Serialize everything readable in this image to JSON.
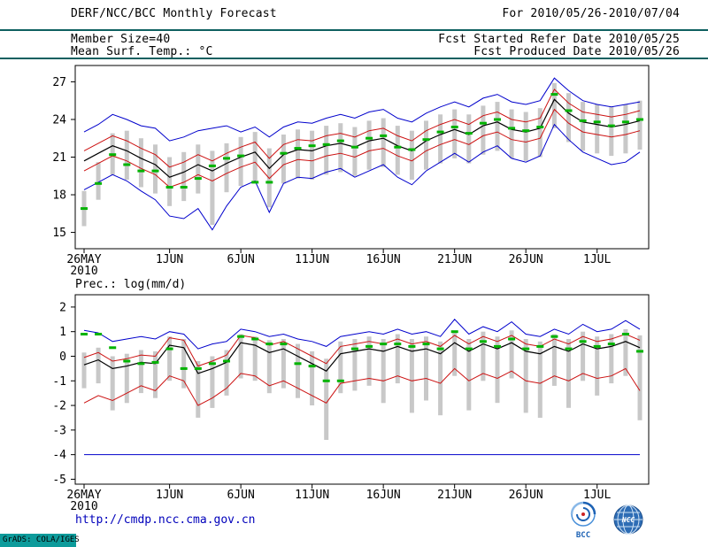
{
  "header": {
    "title": "DERF/NCC/BCC Monthly Forecast",
    "member_size": "Member Size=40",
    "variable_label": "Mean Surf. Temp.: °C",
    "for_range": "For 2010/05/26-2010/07/04",
    "fcst_start": "Fcst Started Refer Date 2010/05/25",
    "fcst_produced": "Fcst Produced Date 2010/05/26"
  },
  "footer": {
    "url": "http://cmdp.ncc.cma.gov.cn",
    "grads_credit": "GrADS: COLA/IGES",
    "bcc_logo_label": "BCC",
    "ncc_logo_label": "NCC"
  },
  "colors": {
    "header_rule": "#0e6060",
    "url_link": "#0000bb",
    "grads_bg": "#0d9b9b",
    "ensemble_minmax": "#0000cc",
    "sigma_band": "#cc1111",
    "ensemble_mean": "#000000",
    "observation": "#00b300",
    "spread_bar": "#c8c8c8"
  },
  "chart_data": [
    {
      "type": "line",
      "title": "Mean Surf. Temp.: °C",
      "ylabel": "°C",
      "ylim": [
        13.7,
        28.3
      ],
      "yticks": [
        15,
        18,
        21,
        24,
        27
      ],
      "n_days": 40,
      "x_tick_positions": [
        0,
        6,
        11,
        16,
        21,
        26,
        31,
        36
      ],
      "x_tick_labels": [
        "26MAY",
        "1JUN",
        "6JUN",
        "11JUN",
        "16JUN",
        "21JUN",
        "26JUN",
        "1JUL"
      ],
      "x_sub_label": "2010",
      "series": [
        {
          "name": "ensemble-max",
          "color": "#0000cc",
          "width": 1,
          "values": [
            23.0,
            23.6,
            24.4,
            24.0,
            23.5,
            23.3,
            22.3,
            22.6,
            23.1,
            23.3,
            23.5,
            23.0,
            23.4,
            22.6,
            23.4,
            23.8,
            23.7,
            24.1,
            24.4,
            24.1,
            24.6,
            24.8,
            24.1,
            23.8,
            24.5,
            25.0,
            25.4,
            25.0,
            25.7,
            26.0,
            25.4,
            25.2,
            25.5,
            27.3,
            26.3,
            25.5,
            25.2,
            25.0,
            25.2,
            25.4
          ]
        },
        {
          "name": "ensemble-min",
          "color": "#0000cc",
          "width": 1,
          "values": [
            18.4,
            19.0,
            19.6,
            19.1,
            18.3,
            17.6,
            16.3,
            16.1,
            16.9,
            15.2,
            17.1,
            18.6,
            19.1,
            16.6,
            18.9,
            19.4,
            19.3,
            19.8,
            20.1,
            19.4,
            19.9,
            20.4,
            19.4,
            18.8,
            19.9,
            20.6,
            21.3,
            20.6,
            21.4,
            21.9,
            20.9,
            20.6,
            21.1,
            23.6,
            22.4,
            21.4,
            20.9,
            20.4,
            20.6,
            21.4
          ]
        },
        {
          "name": "plus-sigma",
          "color": "#cc1111",
          "width": 1,
          "values": [
            21.5,
            22.1,
            22.7,
            22.3,
            21.7,
            21.2,
            20.2,
            20.6,
            21.2,
            20.7,
            21.3,
            21.8,
            22.2,
            20.9,
            22.0,
            22.4,
            22.3,
            22.7,
            22.9,
            22.6,
            23.1,
            23.3,
            22.7,
            22.3,
            23.1,
            23.6,
            24.0,
            23.6,
            24.3,
            24.6,
            24.0,
            23.8,
            24.1,
            26.4,
            25.3,
            24.6,
            24.4,
            24.2,
            24.4,
            24.7
          ]
        },
        {
          "name": "minus-sigma",
          "color": "#cc1111",
          "width": 1,
          "values": [
            19.9,
            20.5,
            21.1,
            20.7,
            20.1,
            19.6,
            18.6,
            19.0,
            19.6,
            19.1,
            19.7,
            20.2,
            20.6,
            19.3,
            20.4,
            20.8,
            20.7,
            21.1,
            21.3,
            21.0,
            21.5,
            21.7,
            21.1,
            20.7,
            21.5,
            22.0,
            22.4,
            22.0,
            22.7,
            23.0,
            22.4,
            22.2,
            22.5,
            24.8,
            23.7,
            23.0,
            22.8,
            22.6,
            22.8,
            23.1
          ]
        },
        {
          "name": "ensemble-mean",
          "color": "#000000",
          "width": 1.2,
          "values": [
            20.7,
            21.3,
            21.9,
            21.5,
            20.9,
            20.4,
            19.4,
            19.8,
            20.4,
            19.9,
            20.5,
            21.0,
            21.4,
            20.1,
            21.2,
            21.6,
            21.5,
            21.9,
            22.1,
            21.8,
            22.3,
            22.5,
            21.9,
            21.5,
            22.3,
            22.8,
            23.2,
            22.8,
            23.5,
            23.8,
            23.2,
            23.0,
            23.3,
            25.6,
            24.5,
            23.8,
            23.6,
            23.4,
            23.6,
            23.9
          ]
        }
      ],
      "bars": {
        "name": "member-spread-bar",
        "color": "#c8c8c8",
        "high": [
          18.3,
          20.6,
          22.9,
          23.1,
          22.5,
          22.0,
          21.0,
          21.4,
          22.0,
          21.5,
          22.1,
          22.6,
          23.0,
          21.7,
          22.8,
          23.2,
          23.1,
          23.5,
          23.7,
          23.4,
          23.9,
          24.1,
          23.5,
          23.1,
          23.9,
          24.4,
          24.8,
          24.4,
          25.1,
          25.4,
          24.8,
          24.6,
          24.9,
          26.9,
          26.1,
          25.4,
          25.2,
          25.0,
          25.2,
          25.5
        ],
        "low": [
          15.5,
          17.6,
          19.6,
          19.2,
          18.6,
          18.1,
          17.1,
          17.5,
          18.1,
          15.6,
          18.2,
          18.7,
          19.1,
          17.0,
          18.9,
          19.3,
          19.2,
          19.6,
          19.8,
          19.5,
          20.0,
          20.2,
          19.6,
          19.2,
          20.0,
          20.5,
          20.9,
          20.5,
          21.2,
          21.5,
          20.9,
          20.7,
          21.0,
          23.3,
          22.2,
          21.5,
          21.3,
          21.1,
          21.3,
          21.6
        ]
      },
      "markers": {
        "name": "observation-marker",
        "color": "#00b300",
        "values": [
          16.9,
          18.9,
          21.2,
          20.4,
          19.9,
          19.9,
          18.6,
          18.6,
          19.3,
          20.3,
          20.9,
          21.1,
          19.0,
          19.0,
          21.3,
          21.7,
          21.9,
          22.0,
          22.3,
          21.8,
          22.5,
          22.7,
          21.8,
          21.6,
          22.4,
          23.0,
          23.4,
          22.9,
          23.7,
          24.0,
          23.3,
          23.1,
          23.4,
          26.0,
          24.7,
          23.9,
          23.8,
          23.5,
          23.8,
          24.0
        ]
      }
    },
    {
      "type": "line",
      "title": "Prec.: log(mm/d)",
      "ylabel": "log(mm/d)",
      "ylim": [
        -5.2,
        2.5
      ],
      "yticks": [
        -5,
        -4,
        -3,
        -2,
        -1,
        0,
        1,
        2
      ],
      "n_days": 40,
      "x_tick_positions": [
        0,
        6,
        11,
        16,
        21,
        26,
        31,
        36
      ],
      "x_tick_labels": [
        "26MAY",
        "1JUN",
        "6JUN",
        "11JUN",
        "16JUN",
        "21JUN",
        "26JUN",
        "1JUL"
      ],
      "x_sub_label": "2010",
      "series": [
        {
          "name": "ensemble-max",
          "color": "#0000cc",
          "width": 1,
          "values": [
            1.05,
            0.95,
            0.6,
            0.7,
            0.8,
            0.7,
            1.0,
            0.9,
            0.3,
            0.5,
            0.6,
            1.1,
            1.0,
            0.8,
            0.9,
            0.7,
            0.6,
            0.4,
            0.8,
            0.9,
            1.0,
            0.9,
            1.1,
            0.9,
            1.0,
            0.8,
            1.5,
            0.9,
            1.2,
            1.0,
            1.4,
            0.9,
            0.8,
            1.1,
            0.9,
            1.3,
            1.0,
            1.1,
            1.45,
            1.1
          ]
        },
        {
          "name": "ensemble-min",
          "color": "#0000cc",
          "width": 1,
          "values": [
            -4.0,
            -4.0,
            -4.0,
            -4.0,
            -4.0,
            -4.0,
            -4.0,
            -4.0,
            -4.0,
            -4.0,
            -4.0,
            -4.0,
            -4.0,
            -4.0,
            -4.0,
            -4.0,
            -4.0,
            -4.0,
            -4.0,
            -4.0,
            -4.0,
            -4.0,
            -4.0,
            -4.0,
            -4.0,
            -4.0,
            -4.0,
            -4.0,
            -4.0,
            -4.0,
            -4.0,
            -4.0,
            -4.0,
            -4.0,
            -4.0,
            -4.0,
            -4.0,
            -4.0,
            -4.0,
            -4.0
          ]
        },
        {
          "name": "plus-sigma",
          "color": "#cc1111",
          "width": 1,
          "values": [
            -0.05,
            0.15,
            -0.2,
            -0.1,
            0.05,
            0.0,
            0.75,
            0.65,
            -0.4,
            -0.2,
            0.05,
            0.85,
            0.75,
            0.45,
            0.6,
            0.3,
            0.0,
            -0.3,
            0.4,
            0.5,
            0.6,
            0.5,
            0.7,
            0.5,
            0.6,
            0.4,
            0.85,
            0.5,
            0.8,
            0.6,
            0.85,
            0.5,
            0.4,
            0.7,
            0.5,
            0.8,
            0.6,
            0.7,
            0.9,
            0.65
          ]
        },
        {
          "name": "minus-sigma",
          "color": "#cc1111",
          "width": 1,
          "values": [
            -1.9,
            -1.6,
            -1.8,
            -1.5,
            -1.2,
            -1.4,
            -0.8,
            -1.0,
            -2.0,
            -1.7,
            -1.3,
            -0.7,
            -0.8,
            -1.2,
            -1.0,
            -1.3,
            -1.6,
            -1.9,
            -1.1,
            -1.0,
            -0.9,
            -1.0,
            -0.8,
            -1.0,
            -0.9,
            -1.1,
            -0.5,
            -1.0,
            -0.7,
            -0.9,
            -0.6,
            -1.0,
            -1.1,
            -0.8,
            -1.0,
            -0.7,
            -0.9,
            -0.8,
            -0.5,
            -1.4
          ]
        },
        {
          "name": "ensemble-mean",
          "color": "#000000",
          "width": 1.2,
          "values": [
            -0.35,
            -0.15,
            -0.5,
            -0.4,
            -0.25,
            -0.3,
            0.45,
            0.35,
            -0.7,
            -0.5,
            -0.25,
            0.55,
            0.45,
            0.15,
            0.3,
            0.0,
            -0.3,
            -0.6,
            0.1,
            0.2,
            0.3,
            0.2,
            0.4,
            0.2,
            0.3,
            0.1,
            0.55,
            0.2,
            0.5,
            0.3,
            0.55,
            0.2,
            0.1,
            0.4,
            0.2,
            0.5,
            0.3,
            0.4,
            0.6,
            0.35
          ]
        }
      ],
      "bars": {
        "name": "member-spread-bar",
        "color": "#c8c8c8",
        "high": [
          0.15,
          0.35,
          0.0,
          0.1,
          0.25,
          0.2,
          0.8,
          0.7,
          -0.2,
          0.0,
          0.25,
          0.9,
          0.8,
          0.65,
          0.7,
          0.5,
          0.2,
          -0.1,
          0.6,
          0.7,
          0.8,
          0.7,
          0.9,
          0.7,
          0.8,
          0.6,
          1.05,
          0.7,
          1.0,
          0.8,
          1.05,
          0.7,
          0.6,
          0.9,
          0.7,
          1.0,
          0.8,
          0.9,
          1.1,
          0.85
        ],
        "low": [
          -1.3,
          -1.1,
          -2.2,
          -1.9,
          -1.5,
          -1.7,
          -1.0,
          -1.3,
          -2.5,
          -2.1,
          -1.6,
          -0.9,
          -1.0,
          -1.5,
          -1.3,
          -1.7,
          -2.0,
          -3.4,
          -1.5,
          -1.4,
          -1.2,
          -1.9,
          -1.1,
          -2.3,
          -1.8,
          -2.4,
          -0.8,
          -2.2,
          -1.0,
          -1.9,
          -0.9,
          -2.3,
          -2.5,
          -1.2,
          -2.1,
          -1.0,
          -1.6,
          -1.1,
          -0.8,
          -2.6
        ]
      },
      "markers": {
        "name": "observation-marker",
        "color": "#00b300",
        "values": [
          0.9,
          0.9,
          0.35,
          -0.2,
          -0.3,
          -0.25,
          0.3,
          -0.5,
          -0.5,
          -0.3,
          -0.2,
          0.8,
          0.7,
          0.5,
          0.5,
          -0.3,
          -0.4,
          -1.0,
          -1.0,
          0.3,
          0.4,
          0.5,
          0.5,
          0.4,
          0.5,
          0.3,
          1.0,
          0.3,
          0.6,
          0.4,
          0.7,
          0.3,
          0.4,
          0.8,
          0.3,
          0.6,
          0.4,
          0.5,
          0.9,
          0.2
        ]
      }
    }
  ]
}
